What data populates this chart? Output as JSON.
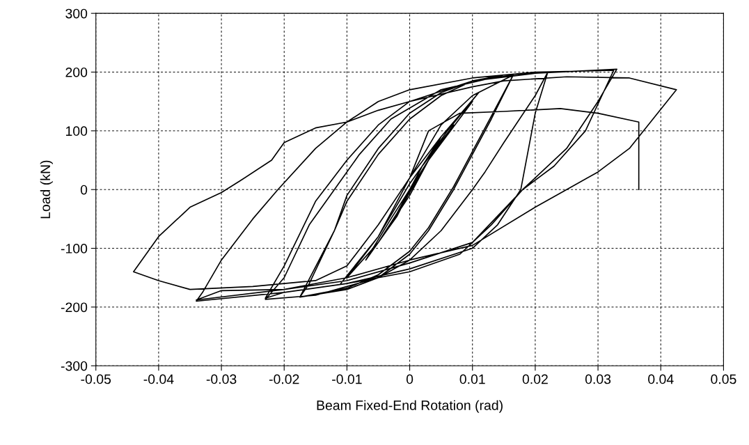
{
  "chart_data": {
    "type": "line",
    "xlabel": "Beam Fixed-End Rotation (rad)",
    "ylabel": "Load (kN)",
    "xlim": [
      -0.05,
      0.05
    ],
    "xticks": [
      -0.05,
      -0.04,
      -0.03,
      -0.02,
      -0.01,
      0,
      0.01,
      0.02,
      0.03,
      0.04,
      0.05
    ],
    "ylim": [
      -300,
      300
    ],
    "yticks": [
      -300,
      -200,
      -100,
      0,
      100,
      200,
      300
    ],
    "grid": true,
    "legend": false,
    "marker": "none",
    "line_style": "solid",
    "series": [
      {
        "color": "#000000",
        "x": [
          0,
          0.003,
          0.005,
          0.002,
          -0.002,
          -0.005,
          -0.002,
          0.002,
          0.007,
          0.003,
          -0.003,
          -0.007,
          -0.003,
          0.003,
          0.01,
          0.005,
          0,
          -0.005,
          -0.01,
          -0.005,
          0,
          0.005,
          0.011,
          0.006,
          0,
          -0.005,
          -0.011,
          -0.005,
          0,
          0.005,
          0.01,
          0.0165,
          0.013,
          0.01,
          0.007,
          0.003,
          0,
          -0.005,
          -0.01,
          -0.0175,
          -0.012,
          -0.01,
          -0.005,
          0,
          0.005,
          0.01,
          0.0165,
          0.013,
          0.01,
          0.007,
          0.003,
          0,
          -0.005,
          -0.01,
          -0.0175,
          -0.016,
          -0.012,
          -0.01,
          -0.005,
          0,
          0.005,
          0.01,
          0.015,
          0.022,
          0.02,
          0.015,
          0.012,
          0.01,
          0.005,
          0,
          -0.005,
          -0.01,
          -0.015,
          -0.023,
          -0.02,
          -0.016,
          -0.012,
          -0.008,
          -0.003,
          0.005,
          0.015,
          0.022,
          0.02,
          0.0177,
          0.014,
          0.01,
          0,
          -0.01,
          -0.02,
          -0.023,
          -0.02,
          -0.015,
          -0.01,
          -0.005,
          0,
          0.01,
          0.02,
          0.033,
          0.03,
          0.025,
          0.018,
          0.013,
          0.008,
          0,
          -0.01,
          -0.02,
          -0.034,
          -0.033,
          -0.03,
          -0.025,
          -0.021,
          -0.015,
          -0.01,
          -0.005,
          0,
          0.01,
          0.02,
          0.0325,
          0.028,
          0.023,
          0.018,
          0.01,
          0,
          -0.01,
          -0.02,
          -0.034,
          -0.03,
          -0.02,
          -0.01,
          0,
          0.01,
          0.02,
          0.025,
          0.03,
          0.035,
          0.0425,
          0.035,
          0.025,
          0.015,
          0.01,
          0,
          -0.005,
          -0.01,
          -0.015,
          -0.02,
          -0.022,
          -0.027,
          -0.03,
          -0.035,
          -0.04,
          -0.044,
          -0.04,
          -0.035,
          -0.025,
          -0.015,
          -0.01,
          -0.005,
          0,
          0.003,
          0.008,
          0.015,
          0.024,
          0.03,
          0.0365,
          0.0365
        ],
        "values": [
          0,
          50,
          90,
          40,
          -40,
          -90,
          -45,
          40,
          110,
          50,
          -50,
          -120,
          -60,
          50,
          150,
          90,
          20,
          -80,
          -150,
          -90,
          -10,
          90,
          165,
          100,
          10,
          -80,
          -160,
          -80,
          20,
          110,
          160,
          195,
          120,
          60,
          0,
          -70,
          -110,
          -150,
          -170,
          -183,
          -70,
          -10,
          70,
          130,
          165,
          185,
          195,
          125,
          65,
          5,
          -65,
          -105,
          -145,
          -168,
          -183,
          -160,
          -70,
          -20,
          60,
          120,
          160,
          185,
          195,
          200,
          160,
          80,
          30,
          0,
          -70,
          -120,
          -150,
          -165,
          -180,
          -187,
          -150,
          -60,
          0,
          60,
          120,
          170,
          195,
          200,
          130,
          0,
          -60,
          -100,
          -135,
          -160,
          -175,
          -185,
          -130,
          -20,
          50,
          110,
          150,
          185,
          198,
          205,
          150,
          70,
          0,
          -60,
          -110,
          -140,
          -160,
          -175,
          -190,
          -175,
          -120,
          -50,
          0,
          70,
          115,
          150,
          170,
          190,
          200,
          203,
          100,
          40,
          0,
          -90,
          -125,
          -155,
          -170,
          -188,
          -172,
          -170,
          -150,
          -120,
          -95,
          -30,
          0,
          30,
          70,
          170,
          190,
          192,
          185,
          175,
          150,
          135,
          115,
          105,
          80,
          50,
          15,
          -5,
          -30,
          -80,
          -140,
          -155,
          -170,
          -165,
          -155,
          -130,
          -60,
          20,
          100,
          130,
          133,
          138,
          130,
          115,
          0
        ]
      }
    ]
  }
}
